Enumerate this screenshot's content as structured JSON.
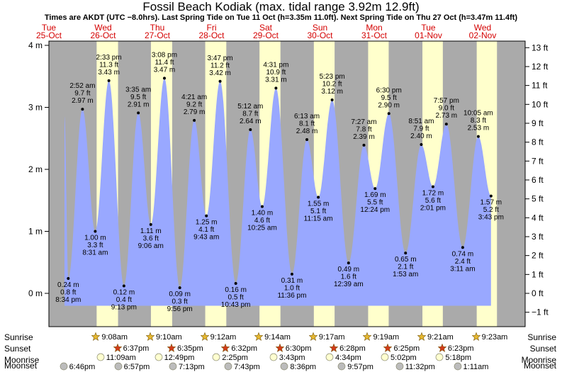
{
  "title": "Fossil Beach Kodiak (max. tidal range 3.92m 12.9ft)",
  "subtitle": "Times are AKDT (UTC −8.0hrs). Last Spring Tide on Tue 11 Oct (h=3.35m 11.0ft). Next Spring Tide on Thu 27 Oct (h=3.47m 11.4ft)",
  "colors": {
    "water": "#99a8ff",
    "daylight": "#ffffcc",
    "night": "#aaaaaa",
    "day_label": "#d40000",
    "sunrise_star": "#e5b730",
    "sunset_star": "#d23a1a",
    "moonrise": "#ffffd0",
    "moonset": "#bcbcbc"
  },
  "chart_data": {
    "type": "area",
    "title": "Fossil Beach Kodiak (max. tidal range 3.92m 12.9ft)",
    "y_left_unit": "m",
    "y_right_unit": "ft",
    "ylim_m": [
      -0.4,
      4.0
    ],
    "left_ticks": [
      {
        "v": 0,
        "label": "0 m"
      },
      {
        "v": 1,
        "label": "1 m"
      },
      {
        "v": 2,
        "label": "2 m"
      },
      {
        "v": 3,
        "label": "3 m"
      },
      {
        "v": 4,
        "label": "4 m"
      }
    ],
    "right_ticks": [
      {
        "v": -1,
        "label": "−1 ft"
      },
      {
        "v": 0,
        "label": "0 ft"
      },
      {
        "v": 1,
        "label": "1 ft"
      },
      {
        "v": 2,
        "label": "2 ft"
      },
      {
        "v": 3,
        "label": "3 ft"
      },
      {
        "v": 4,
        "label": "4 ft"
      },
      {
        "v": 5,
        "label": "5 ft"
      },
      {
        "v": 6,
        "label": "6 ft"
      },
      {
        "v": 7,
        "label": "7 ft"
      },
      {
        "v": 8,
        "label": "8 ft"
      },
      {
        "v": 9,
        "label": "9 ft"
      },
      {
        "v": 10,
        "label": "10 ft"
      },
      {
        "v": 11,
        "label": "11 ft"
      },
      {
        "v": 12,
        "label": "12 ft"
      },
      {
        "v": 13,
        "label": "13 ft"
      }
    ],
    "x_start": "2022-10-25 12:00",
    "days": [
      {
        "dow": "Tue",
        "date": "25-Oct",
        "noon": "2022-10-25 12:00"
      },
      {
        "dow": "Wed",
        "date": "26-Oct",
        "noon": "2022-10-26 12:00"
      },
      {
        "dow": "Thu",
        "date": "27-Oct",
        "noon": "2022-10-27 12:00"
      },
      {
        "dow": "Fri",
        "date": "28-Oct",
        "noon": "2022-10-28 12:00"
      },
      {
        "dow": "Sat",
        "date": "29-Oct",
        "noon": "2022-10-29 12:00"
      },
      {
        "dow": "Sun",
        "date": "30-Oct",
        "noon": "2022-10-30 12:00"
      },
      {
        "dow": "Mon",
        "date": "31-Oct",
        "noon": "2022-10-31 12:00"
      },
      {
        "dow": "Tue",
        "date": "01-Nov",
        "noon": "2022-11-01 12:00"
      },
      {
        "dow": "Wed",
        "date": "02-Nov",
        "noon": "2022-11-02 12:00"
      }
    ],
    "daylight": [
      {
        "start": "2022-10-26 09:08",
        "end": "2022-10-26 18:37"
      },
      {
        "start": "2022-10-27 09:10",
        "end": "2022-10-27 18:35"
      },
      {
        "start": "2022-10-28 09:12",
        "end": "2022-10-28 18:32"
      },
      {
        "start": "2022-10-29 09:14",
        "end": "2022-10-29 18:30"
      },
      {
        "start": "2022-10-30 09:17",
        "end": "2022-10-30 18:28"
      },
      {
        "start": "2022-10-31 09:19",
        "end": "2022-10-31 18:25"
      },
      {
        "start": "2022-11-01 09:21",
        "end": "2022-11-01 18:23"
      },
      {
        "start": "2022-11-02 09:23",
        "end": "2022-11-02 18:21"
      }
    ],
    "tides": [
      {
        "t": "2022-10-25 20:34",
        "m": 0.24,
        "lines": [
          "0.24 m",
          "0.8 ft",
          "8:34 pm"
        ],
        "type": "low"
      },
      {
        "t": "2022-10-26 02:52",
        "m": 2.97,
        "lines": [
          "2:52 am",
          "9.7 ft",
          "2.97 m"
        ],
        "type": "high"
      },
      {
        "t": "2022-10-26 08:31",
        "m": 1.0,
        "lines": [
          "1.00 m",
          "3.3 ft",
          "8:31 am"
        ],
        "type": "low"
      },
      {
        "t": "2022-10-26 14:33",
        "m": 3.43,
        "lines": [
          "2:33 pm",
          "11.3 ft",
          "3.43 m"
        ],
        "type": "high"
      },
      {
        "t": "2022-10-26 21:13",
        "m": 0.12,
        "lines": [
          "0.12 m",
          "0.4 ft",
          "9:13 pm"
        ],
        "type": "low"
      },
      {
        "t": "2022-10-27 03:35",
        "m": 2.91,
        "lines": [
          "3:35 am",
          "9.5 ft",
          "2.91 m"
        ],
        "type": "high"
      },
      {
        "t": "2022-10-27 09:06",
        "m": 1.11,
        "lines": [
          "1.11 m",
          "3.6 ft",
          "9:06 am"
        ],
        "type": "low"
      },
      {
        "t": "2022-10-27 15:08",
        "m": 3.47,
        "lines": [
          "3:08 pm",
          "11.4 ft",
          "3.47 m"
        ],
        "type": "high"
      },
      {
        "t": "2022-10-27 21:56",
        "m": 0.09,
        "lines": [
          "0.09 m",
          "0.3 ft",
          "9:56 pm"
        ],
        "type": "low"
      },
      {
        "t": "2022-10-28 04:21",
        "m": 2.79,
        "lines": [
          "4:21 am",
          "9.2 ft",
          "2.79 m"
        ],
        "type": "high"
      },
      {
        "t": "2022-10-28 09:43",
        "m": 1.25,
        "lines": [
          "1.25 m",
          "4.1 ft",
          "9:43 am"
        ],
        "type": "low"
      },
      {
        "t": "2022-10-28 15:47",
        "m": 3.42,
        "lines": [
          "3:47 pm",
          "11.2 ft",
          "3.42 m"
        ],
        "type": "high"
      },
      {
        "t": "2022-10-28 22:43",
        "m": 0.16,
        "lines": [
          "0.16 m",
          "0.5 ft",
          "10:43 pm"
        ],
        "type": "low"
      },
      {
        "t": "2022-10-29 05:12",
        "m": 2.64,
        "lines": [
          "5:12 am",
          "8.7 ft",
          "2.64 m"
        ],
        "type": "high"
      },
      {
        "t": "2022-10-29 10:25",
        "m": 1.4,
        "lines": [
          "1.40 m",
          "4.6 ft",
          "10:25 am"
        ],
        "type": "low"
      },
      {
        "t": "2022-10-29 16:31",
        "m": 3.31,
        "lines": [
          "4:31 pm",
          "10.9 ft",
          "3.31 m"
        ],
        "type": "high"
      },
      {
        "t": "2022-10-29 23:36",
        "m": 0.31,
        "lines": [
          "0.31 m",
          "1.0 ft",
          "11:36 pm"
        ],
        "type": "low"
      },
      {
        "t": "2022-10-30 06:13",
        "m": 2.48,
        "lines": [
          "6:13 am",
          "8.1 ft",
          "2.48 m"
        ],
        "type": "high"
      },
      {
        "t": "2022-10-30 11:15",
        "m": 1.55,
        "lines": [
          "1.55 m",
          "5.1 ft",
          "11:15 am"
        ],
        "type": "low"
      },
      {
        "t": "2022-10-30 17:23",
        "m": 3.12,
        "lines": [
          "5:23 pm",
          "10.2 ft",
          "3.12 m"
        ],
        "type": "high"
      },
      {
        "t": "2022-10-31 00:39",
        "m": 0.49,
        "lines": [
          "0.49 m",
          "1.6 ft",
          "12:39 am"
        ],
        "type": "low"
      },
      {
        "t": "2022-10-31 07:27",
        "m": 2.39,
        "lines": [
          "7:27 am",
          "7.8 ft",
          "2.39 m"
        ],
        "type": "high"
      },
      {
        "t": "2022-10-31 12:24",
        "m": 1.69,
        "lines": [
          "1.69 m",
          "5.5 ft",
          "12:24 pm"
        ],
        "type": "low"
      },
      {
        "t": "2022-10-31 18:30",
        "m": 2.9,
        "lines": [
          "6:30 pm",
          "9.5 ft",
          "2.90 m"
        ],
        "type": "high"
      },
      {
        "t": "2022-11-01 01:53",
        "m": 0.65,
        "lines": [
          "0.65 m",
          "2.1 ft",
          "1:53 am"
        ],
        "type": "low"
      },
      {
        "t": "2022-11-01 08:51",
        "m": 2.4,
        "lines": [
          "8:51 am",
          "7.9 ft",
          "2.40 m"
        ],
        "type": "high"
      },
      {
        "t": "2022-11-01 14:01",
        "m": 1.72,
        "lines": [
          "1.72 m",
          "5.6 ft",
          "2:01 pm"
        ],
        "type": "low"
      },
      {
        "t": "2022-11-01 19:57",
        "m": 2.73,
        "lines": [
          "7:57 pm",
          "9.0 ft",
          "2.73 m"
        ],
        "type": "high"
      },
      {
        "t": "2022-11-02 03:11",
        "m": 0.74,
        "lines": [
          "0.74 m",
          "2.4 ft",
          "3:11 am"
        ],
        "type": "low"
      },
      {
        "t": "2022-11-02 10:05",
        "m": 2.53,
        "lines": [
          "10:05 am",
          "8.3 ft",
          "2.53 m"
        ],
        "type": "high"
      },
      {
        "t": "2022-11-02 15:43",
        "m": 1.57,
        "lines": [
          "1.57 m",
          "5.2 ft",
          "3:43 pm"
        ],
        "type": "low"
      }
    ]
  },
  "astro": {
    "row_labels": [
      "Sunrise",
      "Sunset",
      "Moonrise",
      "Moonset"
    ],
    "sunrise": [
      {
        "t": "2022-10-26 09:08",
        "label": "9:08am"
      },
      {
        "t": "2022-10-27 09:10",
        "label": "9:10am"
      },
      {
        "t": "2022-10-28 09:12",
        "label": "9:12am"
      },
      {
        "t": "2022-10-29 09:14",
        "label": "9:14am"
      },
      {
        "t": "2022-10-30 09:17",
        "label": "9:17am"
      },
      {
        "t": "2022-10-31 09:19",
        "label": "9:19am"
      },
      {
        "t": "2022-11-01 09:21",
        "label": "9:21am"
      },
      {
        "t": "2022-11-02 09:23",
        "label": "9:23am"
      }
    ],
    "sunset": [
      {
        "t": "2022-10-26 18:37",
        "label": "6:37pm"
      },
      {
        "t": "2022-10-27 18:35",
        "label": "6:35pm"
      },
      {
        "t": "2022-10-28 18:32",
        "label": "6:32pm"
      },
      {
        "t": "2022-10-29 18:30",
        "label": "6:30pm"
      },
      {
        "t": "2022-10-30 18:28",
        "label": "6:28pm"
      },
      {
        "t": "2022-10-31 18:25",
        "label": "6:25pm"
      },
      {
        "t": "2022-11-01 18:23",
        "label": "6:23pm"
      }
    ],
    "moonrise": [
      {
        "t": "2022-10-26 11:09",
        "label": "11:09am"
      },
      {
        "t": "2022-10-27 12:49",
        "label": "12:49pm"
      },
      {
        "t": "2022-10-28 14:25",
        "label": "2:25pm"
      },
      {
        "t": "2022-10-29 15:43",
        "label": "3:43pm"
      },
      {
        "t": "2022-10-30 16:34",
        "label": "4:34pm"
      },
      {
        "t": "2022-10-31 17:02",
        "label": "5:02pm"
      },
      {
        "t": "2022-11-01 17:18",
        "label": "5:18pm"
      }
    ],
    "moonset": [
      {
        "t": "2022-10-25 18:46",
        "label": "6:46pm"
      },
      {
        "t": "2022-10-26 18:57",
        "label": "6:57pm"
      },
      {
        "t": "2022-10-27 19:13",
        "label": "7:13pm"
      },
      {
        "t": "2022-10-28 19:43",
        "label": "7:43pm"
      },
      {
        "t": "2022-10-29 20:36",
        "label": "8:36pm"
      },
      {
        "t": "2022-10-30 21:57",
        "label": "9:57pm"
      },
      {
        "t": "2022-10-31 23:32",
        "label": "11:32pm"
      },
      {
        "t": "2022-11-02 01:11",
        "label": "1:11am"
      }
    ]
  }
}
